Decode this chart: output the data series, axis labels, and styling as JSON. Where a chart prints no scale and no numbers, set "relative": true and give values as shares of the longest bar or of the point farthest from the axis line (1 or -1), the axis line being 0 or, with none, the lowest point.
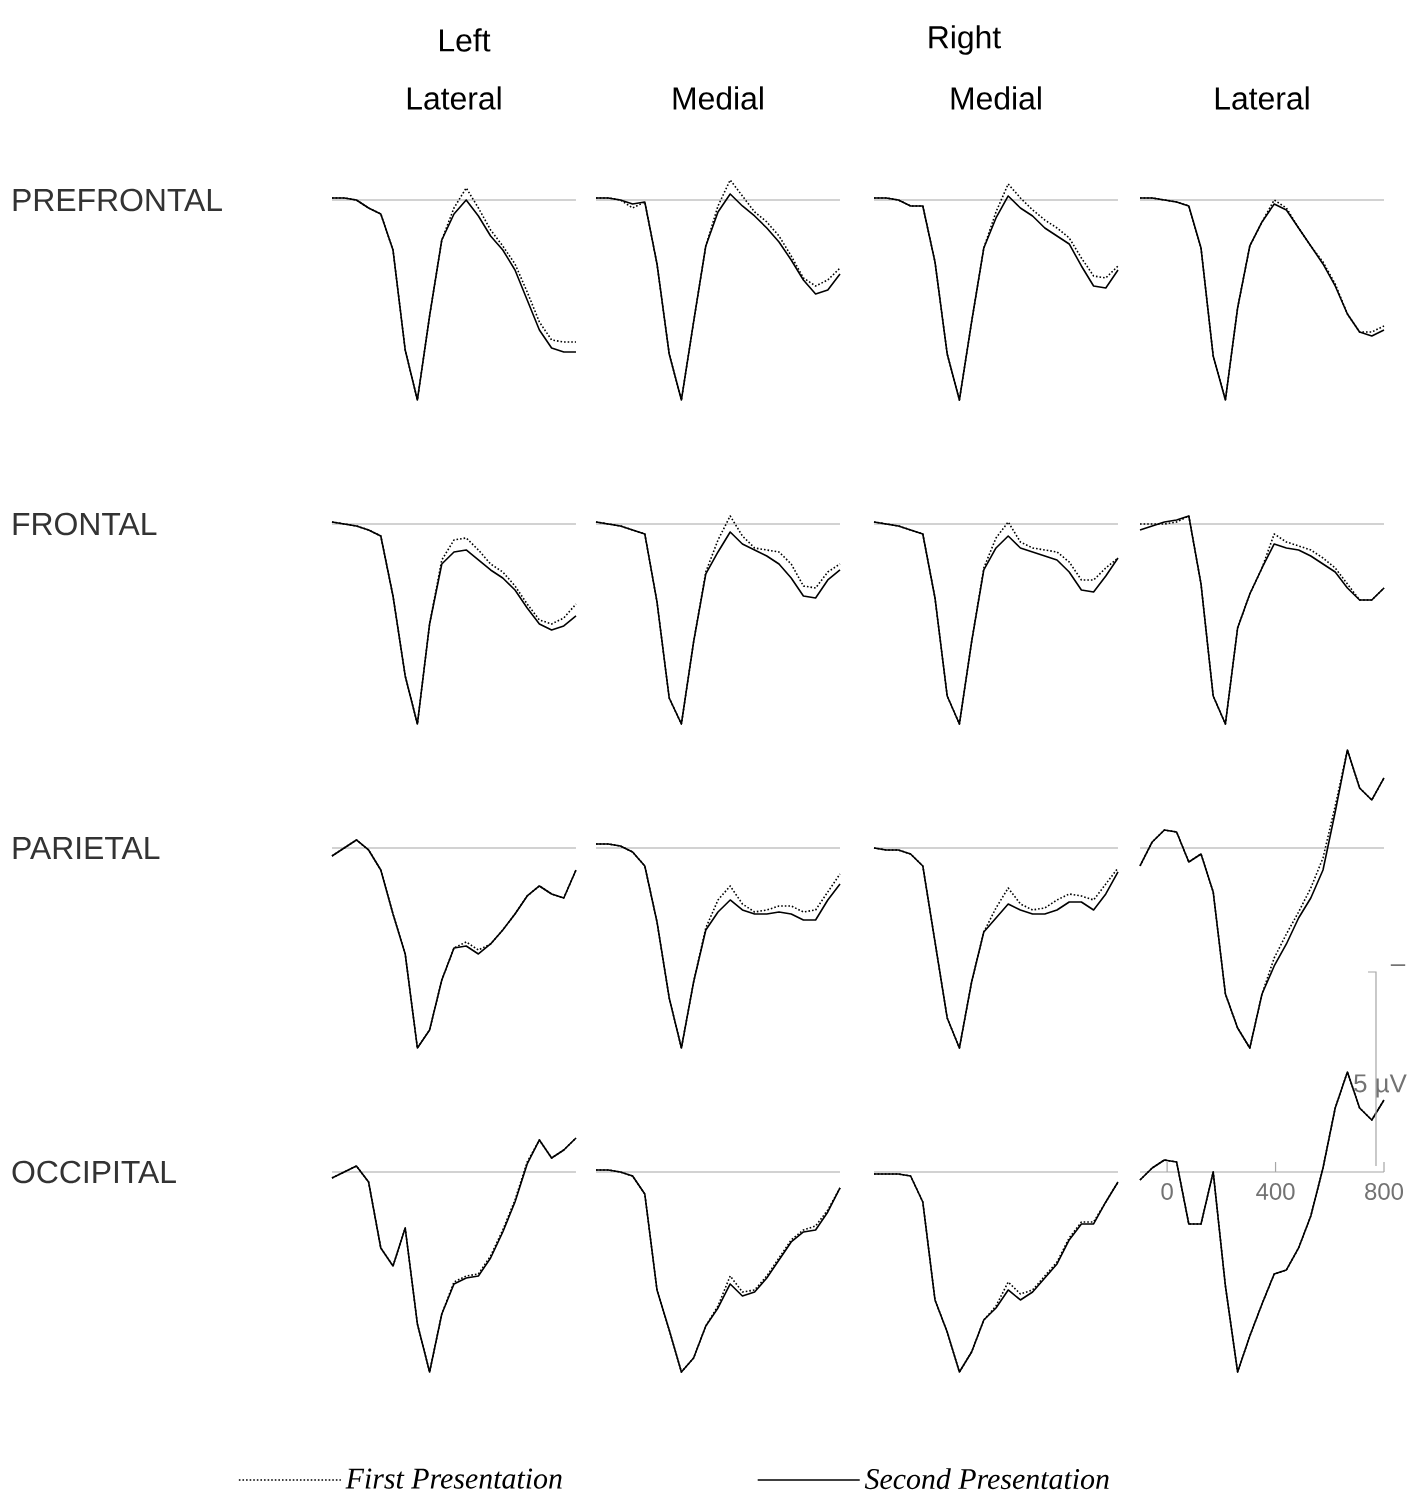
{
  "chart_data": [
    {
      "type": "other",
      "annotations": [
        "Left",
        "Right"
      ]
    },
    {
      "type": "line",
      "relative": true,
      "title": "Lateral",
      "ylabel": "PREFRONTAL",
      "categories": [
        null,
        null,
        null,
        null,
        null,
        null,
        null,
        null,
        null,
        null,
        null,
        null,
        null,
        null,
        null,
        null,
        null,
        null,
        null,
        null,
        null
      ],
      "series": [
        {
          "color": "#000000",
          "line_style": "dotted",
          "values": [
            0.01,
            0.01,
            0,
            -0.04,
            -0.07,
            -0.25,
            -0.75,
            -1,
            -0.58,
            -0.2,
            -0.04,
            0.06,
            -0.04,
            -0.15,
            -0.23,
            -0.32,
            -0.46,
            -0.61,
            -0.7,
            -0.71,
            -0.71
          ]
        },
        {
          "color": "#000000",
          "line_style": "solid",
          "values": [
            0.01,
            0.01,
            0,
            -0.04,
            -0.07,
            -0.25,
            -0.75,
            -1,
            -0.58,
            -0.2,
            -0.07,
            0,
            -0.08,
            -0.18,
            -0.25,
            -0.35,
            -0.5,
            -0.65,
            -0.74,
            -0.76,
            -0.76
          ]
        }
      ]
    },
    {
      "type": "line",
      "relative": true,
      "title": "Medial",
      "categories": [
        null,
        null,
        null,
        null,
        null,
        null,
        null,
        null,
        null,
        null,
        null,
        null,
        null,
        null,
        null,
        null,
        null,
        null,
        null,
        null,
        null
      ],
      "series": [
        {
          "color": "#000000",
          "line_style": "dotted",
          "values": [
            0.01,
            0.01,
            0,
            -0.04,
            -0.01,
            -0.32,
            -0.77,
            -1,
            -0.61,
            -0.23,
            -0.03,
            0.1,
            0.02,
            -0.06,
            -0.11,
            -0.18,
            -0.28,
            -0.39,
            -0.43,
            -0.4,
            -0.34
          ]
        },
        {
          "color": "#000000",
          "line_style": "solid",
          "values": [
            0.01,
            0.01,
            0,
            -0.02,
            -0.01,
            -0.32,
            -0.77,
            -1,
            -0.61,
            -0.23,
            -0.06,
            0.03,
            -0.03,
            -0.08,
            -0.14,
            -0.21,
            -0.3,
            -0.4,
            -0.47,
            -0.45,
            -0.37
          ]
        }
      ]
    },
    {
      "type": "line",
      "relative": true,
      "title": "Medial",
      "categories": [
        null,
        null,
        null,
        null,
        null,
        null,
        null,
        null,
        null,
        null,
        null,
        null,
        null,
        null,
        null,
        null,
        null,
        null,
        null,
        null,
        null
      ],
      "series": [
        {
          "color": "#000000",
          "line_style": "dotted",
          "values": [
            0.01,
            0.01,
            0,
            -0.03,
            -0.03,
            -0.31,
            -0.77,
            -1,
            -0.61,
            -0.24,
            -0.06,
            0.08,
            0.01,
            -0.05,
            -0.1,
            -0.14,
            -0.19,
            -0.29,
            -0.38,
            -0.39,
            -0.33
          ]
        },
        {
          "color": "#000000",
          "line_style": "solid",
          "values": [
            0.01,
            0.01,
            0,
            -0.03,
            -0.03,
            -0.31,
            -0.77,
            -1,
            -0.61,
            -0.24,
            -0.09,
            0.02,
            -0.04,
            -0.08,
            -0.14,
            -0.18,
            -0.22,
            -0.33,
            -0.43,
            -0.44,
            -0.35
          ]
        }
      ]
    },
    {
      "type": "line",
      "relative": true,
      "title": "Lateral",
      "categories": [
        null,
        null,
        null,
        null,
        null,
        null,
        null,
        null,
        null,
        null,
        null,
        null,
        null,
        null,
        null,
        null,
        null,
        null,
        null,
        null,
        null
      ],
      "series": [
        {
          "color": "#000000",
          "line_style": "dotted",
          "values": [
            0.01,
            0.01,
            0,
            -0.01,
            -0.03,
            -0.24,
            -0.78,
            -1,
            -0.54,
            -0.23,
            -0.11,
            0,
            -0.04,
            -0.14,
            -0.23,
            -0.31,
            -0.42,
            -0.57,
            -0.66,
            -0.66,
            -0.63
          ]
        },
        {
          "color": "#000000",
          "line_style": "solid",
          "values": [
            0.01,
            0.01,
            0,
            -0.01,
            -0.03,
            -0.24,
            -0.78,
            -1,
            -0.54,
            -0.23,
            -0.11,
            -0.02,
            -0.05,
            -0.14,
            -0.23,
            -0.32,
            -0.43,
            -0.57,
            -0.66,
            -0.68,
            -0.65
          ]
        }
      ]
    },
    {
      "type": "line",
      "relative": true,
      "ylabel": "FRONTAL",
      "categories": [
        null,
        null,
        null,
        null,
        null,
        null,
        null,
        null,
        null,
        null,
        null,
        null,
        null,
        null,
        null,
        null,
        null,
        null,
        null,
        null,
        null
      ],
      "series": [
        {
          "color": "#000000",
          "line_style": "dotted",
          "values": [
            0.01,
            0,
            -0.01,
            -0.03,
            -0.06,
            -0.36,
            -0.76,
            -1,
            -0.5,
            -0.18,
            -0.08,
            -0.07,
            -0.13,
            -0.2,
            -0.24,
            -0.31,
            -0.4,
            -0.48,
            -0.5,
            -0.47,
            -0.4
          ]
        },
        {
          "color": "#000000",
          "line_style": "solid",
          "values": [
            0.01,
            0,
            -0.01,
            -0.03,
            -0.06,
            -0.36,
            -0.76,
            -1,
            -0.5,
            -0.2,
            -0.14,
            -0.13,
            -0.18,
            -0.23,
            -0.27,
            -0.33,
            -0.42,
            -0.5,
            -0.53,
            -0.51,
            -0.46
          ]
        }
      ]
    },
    {
      "type": "line",
      "relative": true,
      "categories": [
        null,
        null,
        null,
        null,
        null,
        null,
        null,
        null,
        null,
        null,
        null,
        null,
        null,
        null,
        null,
        null,
        null,
        null,
        null,
        null,
        null
      ],
      "series": [
        {
          "color": "#000000",
          "line_style": "dotted",
          "values": [
            0.01,
            0,
            -0.01,
            -0.03,
            -0.05,
            -0.39,
            -0.87,
            -1,
            -0.59,
            -0.24,
            -0.08,
            0.04,
            -0.06,
            -0.12,
            -0.13,
            -0.14,
            -0.2,
            -0.31,
            -0.32,
            -0.24,
            -0.2
          ]
        },
        {
          "color": "#000000",
          "line_style": "solid",
          "values": [
            0.01,
            0,
            -0.01,
            -0.03,
            -0.05,
            -0.39,
            -0.87,
            -1,
            -0.59,
            -0.25,
            -0.14,
            -0.04,
            -0.1,
            -0.13,
            -0.16,
            -0.2,
            -0.27,
            -0.36,
            -0.37,
            -0.28,
            -0.23
          ]
        }
      ]
    },
    {
      "type": "line",
      "relative": true,
      "categories": [
        null,
        null,
        null,
        null,
        null,
        null,
        null,
        null,
        null,
        null,
        null,
        null,
        null,
        null,
        null,
        null,
        null,
        null,
        null,
        null,
        null
      ],
      "series": [
        {
          "color": "#000000",
          "line_style": "dotted",
          "values": [
            0.01,
            0,
            -0.01,
            -0.03,
            -0.05,
            -0.37,
            -0.86,
            -1,
            -0.59,
            -0.22,
            -0.07,
            0.01,
            -0.09,
            -0.12,
            -0.13,
            -0.14,
            -0.19,
            -0.28,
            -0.28,
            -0.22,
            -0.17
          ]
        },
        {
          "color": "#000000",
          "line_style": "solid",
          "values": [
            0.01,
            0,
            -0.01,
            -0.03,
            -0.05,
            -0.37,
            -0.86,
            -1,
            -0.59,
            -0.23,
            -0.12,
            -0.06,
            -0.12,
            -0.14,
            -0.16,
            -0.18,
            -0.24,
            -0.33,
            -0.34,
            -0.26,
            -0.17
          ]
        }
      ]
    },
    {
      "type": "line",
      "relative": true,
      "categories": [
        null,
        null,
        null,
        null,
        null,
        null,
        null,
        null,
        null,
        null,
        null,
        null,
        null,
        null,
        null,
        null,
        null,
        null,
        null,
        null,
        null
      ],
      "series": [
        {
          "color": "#000000",
          "line_style": "dotted",
          "values": [
            0,
            0,
            0,
            0.01,
            0.04,
            -0.3,
            -0.86,
            -1,
            -0.52,
            -0.35,
            -0.22,
            -0.05,
            -0.09,
            -0.11,
            -0.13,
            -0.17,
            -0.22,
            -0.3,
            -0.38,
            -0.38,
            -0.32
          ]
        },
        {
          "color": "#000000",
          "line_style": "solid",
          "values": [
            -0.03,
            -0.01,
            0.01,
            0.02,
            0.04,
            -0.3,
            -0.86,
            -1,
            -0.52,
            -0.35,
            -0.22,
            -0.1,
            -0.12,
            -0.13,
            -0.16,
            -0.2,
            -0.24,
            -0.32,
            -0.38,
            -0.38,
            -0.32
          ]
        }
      ]
    },
    {
      "type": "line",
      "relative": true,
      "ylabel": "PARIETAL",
      "categories": [
        null,
        null,
        null,
        null,
        null,
        null,
        null,
        null,
        null,
        null,
        null,
        null,
        null,
        null,
        null,
        null,
        null,
        null,
        null,
        null,
        null
      ],
      "series": [
        {
          "color": "#000000",
          "line_style": "dotted",
          "values": [
            -0.04,
            0,
            0.04,
            -0.01,
            -0.11,
            -0.33,
            -0.53,
            -1,
            -0.91,
            -0.66,
            -0.5,
            -0.47,
            -0.51,
            -0.48,
            -0.41,
            -0.33,
            -0.24,
            -0.19,
            -0.23,
            -0.25,
            -0.11
          ]
        },
        {
          "color": "#000000",
          "line_style": "solid",
          "values": [
            -0.04,
            0,
            0.04,
            -0.01,
            -0.11,
            -0.33,
            -0.53,
            -1,
            -0.91,
            -0.66,
            -0.5,
            -0.49,
            -0.53,
            -0.48,
            -0.41,
            -0.33,
            -0.24,
            -0.19,
            -0.23,
            -0.25,
            -0.11
          ]
        }
      ]
    },
    {
      "type": "line",
      "relative": true,
      "categories": [
        null,
        null,
        null,
        null,
        null,
        null,
        null,
        null,
        null,
        null,
        null,
        null,
        null,
        null,
        null,
        null,
        null,
        null,
        null,
        null,
        null
      ],
      "series": [
        {
          "color": "#000000",
          "line_style": "dotted",
          "values": [
            0.02,
            0.02,
            0.01,
            -0.02,
            -0.09,
            -0.37,
            -0.75,
            -1,
            -0.67,
            -0.4,
            -0.26,
            -0.19,
            -0.28,
            -0.32,
            -0.31,
            -0.29,
            -0.29,
            -0.32,
            -0.31,
            -0.22,
            -0.13
          ]
        },
        {
          "color": "#000000",
          "line_style": "solid",
          "values": [
            0.02,
            0.02,
            0.01,
            -0.02,
            -0.09,
            -0.37,
            -0.75,
            -1,
            -0.67,
            -0.41,
            -0.32,
            -0.26,
            -0.31,
            -0.33,
            -0.33,
            -0.32,
            -0.33,
            -0.36,
            -0.36,
            -0.26,
            -0.18
          ]
        }
      ]
    },
    {
      "type": "line",
      "relative": true,
      "categories": [
        null,
        null,
        null,
        null,
        null,
        null,
        null,
        null,
        null,
        null,
        null,
        null,
        null,
        null,
        null,
        null,
        null,
        null,
        null,
        null,
        null
      ],
      "series": [
        {
          "color": "#000000",
          "line_style": "dotted",
          "values": [
            0,
            -0.01,
            -0.01,
            -0.03,
            -0.09,
            -0.47,
            -0.85,
            -1,
            -0.67,
            -0.42,
            -0.3,
            -0.2,
            -0.28,
            -0.31,
            -0.3,
            -0.26,
            -0.23,
            -0.24,
            -0.26,
            -0.18,
            -0.1
          ]
        },
        {
          "color": "#000000",
          "line_style": "solid",
          "values": [
            0,
            -0.01,
            -0.01,
            -0.03,
            -0.09,
            -0.47,
            -0.85,
            -1,
            -0.67,
            -0.42,
            -0.35,
            -0.28,
            -0.31,
            -0.33,
            -0.33,
            -0.31,
            -0.27,
            -0.27,
            -0.31,
            -0.23,
            -0.12
          ]
        }
      ]
    },
    {
      "type": "line",
      "relative": true,
      "categories": [
        null,
        null,
        null,
        null,
        null,
        null,
        null,
        null,
        null,
        null,
        null,
        null,
        null,
        null,
        null,
        null,
        null,
        null,
        null,
        null,
        null
      ],
      "series": [
        {
          "color": "#000000",
          "line_style": "dotted",
          "values": [
            -0.09,
            0.03,
            0.09,
            0.08,
            -0.07,
            -0.03,
            -0.22,
            -0.73,
            -0.9,
            -1,
            -0.73,
            -0.55,
            -0.43,
            -0.32,
            -0.2,
            -0.05,
            0.21,
            0.49,
            0.3,
            0.24,
            0.35
          ]
        },
        {
          "color": "#000000",
          "line_style": "solid",
          "values": [
            -0.09,
            0.03,
            0.09,
            0.08,
            -0.07,
            -0.03,
            -0.22,
            -0.73,
            -0.9,
            -1,
            -0.73,
            -0.59,
            -0.48,
            -0.35,
            -0.25,
            -0.11,
            0.18,
            0.49,
            0.3,
            0.24,
            0.35
          ]
        }
      ]
    },
    {
      "type": "line",
      "relative": true,
      "ylabel": "OCCIPITAL",
      "legend": "bottom",
      "categories": [
        null,
        null,
        null,
        null,
        null,
        null,
        null,
        null,
        null,
        null,
        null,
        null,
        null,
        null,
        null,
        null,
        null,
        null,
        null,
        null,
        null
      ],
      "series": [
        {
          "name": "First Presentation",
          "color": "#000000",
          "line_style": "dotted",
          "values": [
            -0.03,
            0,
            0.03,
            -0.05,
            -0.38,
            -0.47,
            -0.28,
            -0.76,
            -1,
            -0.71,
            -0.55,
            -0.52,
            -0.51,
            -0.42,
            -0.29,
            -0.14,
            0.05,
            0.16,
            0.07,
            0.11,
            0.17
          ]
        },
        {
          "name": "Second Presentation",
          "color": "#000000",
          "line_style": "solid",
          "values": [
            -0.03,
            0,
            0.03,
            -0.05,
            -0.38,
            -0.47,
            -0.28,
            -0.76,
            -1,
            -0.71,
            -0.56,
            -0.53,
            -0.52,
            -0.43,
            -0.3,
            -0.15,
            0.04,
            0.16,
            0.07,
            0.11,
            0.17
          ]
        }
      ]
    },
    {
      "type": "line",
      "relative": true,
      "categories": [
        null,
        null,
        null,
        null,
        null,
        null,
        null,
        null,
        null,
        null,
        null,
        null,
        null,
        null,
        null,
        null,
        null,
        null,
        null,
        null,
        null
      ],
      "series": [
        {
          "color": "#000000",
          "line_style": "dotted",
          "values": [
            0.01,
            0.01,
            0,
            -0.02,
            -0.11,
            -0.59,
            -0.79,
            -1,
            -0.93,
            -0.77,
            -0.67,
            -0.52,
            -0.6,
            -0.59,
            -0.52,
            -0.43,
            -0.34,
            -0.29,
            -0.27,
            -0.19,
            -0.08
          ]
        },
        {
          "color": "#000000",
          "line_style": "solid",
          "values": [
            0.01,
            0.01,
            0,
            -0.02,
            -0.11,
            -0.59,
            -0.79,
            -1,
            -0.93,
            -0.77,
            -0.68,
            -0.56,
            -0.62,
            -0.6,
            -0.53,
            -0.44,
            -0.35,
            -0.3,
            -0.29,
            -0.2,
            -0.08
          ]
        }
      ]
    },
    {
      "type": "line",
      "relative": true,
      "categories": [
        null,
        null,
        null,
        null,
        null,
        null,
        null,
        null,
        null,
        null,
        null,
        null,
        null,
        null,
        null,
        null,
        null,
        null,
        null,
        null,
        null
      ],
      "series": [
        {
          "color": "#000000",
          "line_style": "dotted",
          "values": [
            -0.01,
            -0.01,
            -0.01,
            -0.02,
            -0.15,
            -0.64,
            -0.8,
            -1,
            -0.9,
            -0.74,
            -0.67,
            -0.55,
            -0.61,
            -0.59,
            -0.52,
            -0.45,
            -0.33,
            -0.25,
            -0.25,
            -0.15,
            -0.05
          ]
        },
        {
          "color": "#000000",
          "line_style": "solid",
          "values": [
            -0.01,
            -0.01,
            -0.01,
            -0.02,
            -0.15,
            -0.64,
            -0.8,
            -1,
            -0.9,
            -0.74,
            -0.68,
            -0.59,
            -0.64,
            -0.6,
            -0.53,
            -0.46,
            -0.34,
            -0.26,
            -0.26,
            -0.15,
            -0.05
          ]
        }
      ]
    },
    {
      "type": "line",
      "relative": true,
      "annotations": [
        "–",
        "5 µV"
      ],
      "x": [
        -100,
        -55,
        -10,
        35,
        80,
        125,
        170,
        215,
        260,
        305,
        350,
        395,
        440,
        485,
        530,
        575,
        620,
        665,
        710,
        755,
        800
      ],
      "xlim": [
        -100,
        800
      ],
      "xticks": [
        0,
        400,
        800
      ],
      "tick_labels": "x",
      "series": [
        {
          "color": "#000000",
          "line_style": "dotted",
          "values": [
            -0.04,
            0.02,
            0.06,
            0.05,
            -0.26,
            -0.26,
            0,
            -0.57,
            -1,
            -0.82,
            -0.66,
            -0.51,
            -0.49,
            -0.38,
            -0.22,
            0.02,
            0.32,
            0.5,
            0.32,
            0.26,
            0.36
          ]
        },
        {
          "color": "#000000",
          "line_style": "solid",
          "values": [
            -0.04,
            0.02,
            0.06,
            0.05,
            -0.26,
            -0.26,
            0,
            -0.57,
            -1,
            -0.82,
            -0.66,
            -0.51,
            -0.49,
            -0.38,
            -0.22,
            0.02,
            0.32,
            0.5,
            0.32,
            0.26,
            0.36
          ]
        }
      ]
    }
  ]
}
